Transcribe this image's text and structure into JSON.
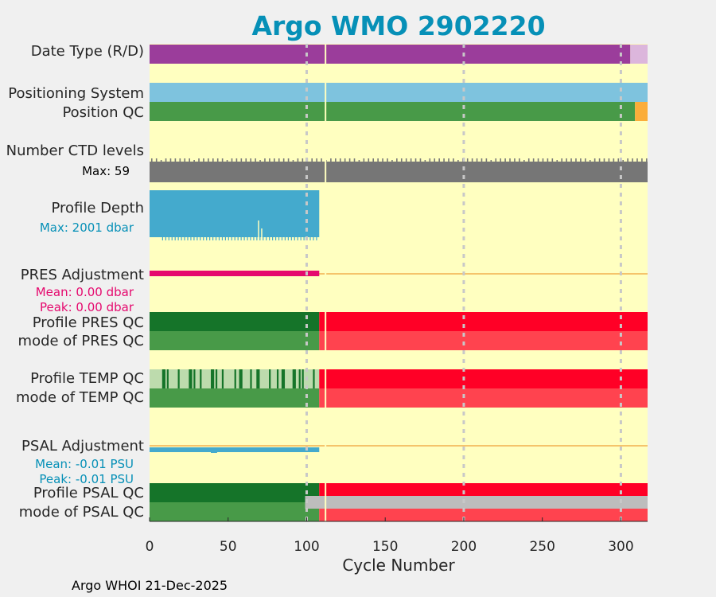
{
  "colors": {
    "title": "#0690b7",
    "background": "#ffffc0",
    "figure": "#f0f0f0",
    "date_real": "#9b3d9b",
    "date_delayed": "#dcb6dc",
    "position_system": "#7ec3de",
    "qc_good": "#489a48",
    "qc_probably_bad": "#fbad3a",
    "ctd": "#767676",
    "depth": "#44aacd",
    "pres_adj": "#e5096e",
    "adj_line": "#f5c46b",
    "qc_dark_green": "#157429",
    "qc_light_green": "#bddbad",
    "qc_red": "#ff0026",
    "qc_mode_red": "#ff434f",
    "psal_adj": "#44aacd",
    "qc_grey": "#bdbdbd",
    "grid": "#c8c8c8",
    "cursor": "#ffffc0"
  },
  "chart_data": {
    "type": "bar",
    "title": "Argo WMO 2902220",
    "xlabel": "Cycle Number",
    "xlim": [
      0,
      317
    ],
    "xticks": [
      0,
      50,
      100,
      150,
      200,
      250,
      300
    ],
    "xtick_labels": [
      "0",
      "50",
      "100",
      "150",
      "200",
      "250",
      "300"
    ],
    "grid_x": [
      100,
      200,
      300
    ],
    "highlight_cycle": 112,
    "rows": [
      {
        "id": "date",
        "label": "Date Type (R/D)",
        "segments": [
          {
            "from": 0,
            "to": 306,
            "color": "date_real"
          },
          {
            "from": 306,
            "to": 317,
            "color": "date_delayed"
          }
        ]
      },
      {
        "id": "possys",
        "label": "Positioning System",
        "segments": [
          {
            "from": 0,
            "to": 317,
            "color": "position_system"
          }
        ]
      },
      {
        "id": "posqc",
        "label": "Position QC",
        "segments": [
          {
            "from": 0,
            "to": 309,
            "color": "qc_good"
          },
          {
            "from": 309,
            "to": 317,
            "color": "qc_probably_bad"
          }
        ]
      },
      {
        "id": "ctd",
        "label": "Number CTD levels",
        "sublabel": "Max: 59",
        "max": 59,
        "range": [
          0,
          317
        ]
      },
      {
        "id": "depth",
        "label": "Profile Depth",
        "sublabel": "Max: 2001 dbar",
        "max": 2001,
        "range": [
          0,
          108
        ]
      },
      {
        "id": "presadj",
        "label": "PRES Adjustment",
        "mean": "Mean: 0.00 dbar",
        "peak": "Peak: 0.00 dbar",
        "range": [
          0,
          108
        ]
      },
      {
        "id": "presqc",
        "label": "Profile PRES QC",
        "segments": [
          {
            "from": 0,
            "to": 108,
            "color": "qc_dark_green"
          },
          {
            "from": 108,
            "to": 317,
            "color": "qc_red"
          }
        ]
      },
      {
        "id": "presmode",
        "label": "mode of PRES QC",
        "segments": [
          {
            "from": 0,
            "to": 108,
            "color": "qc_good"
          },
          {
            "from": 108,
            "to": 317,
            "color": "qc_mode_red"
          }
        ]
      },
      {
        "id": "tempqc",
        "label": "Profile TEMP QC",
        "segments": [
          {
            "from": 0,
            "to": 108,
            "color": "qc_light_green"
          },
          {
            "from": 108,
            "to": 317,
            "color": "qc_red"
          }
        ],
        "dark_cycles": [
          8,
          9,
          11,
          18,
          25,
          26,
          28,
          32,
          39,
          40,
          42,
          46,
          54,
          57,
          58,
          64,
          68,
          69,
          76,
          81,
          84,
          85,
          91,
          92,
          95,
          97,
          104
        ]
      },
      {
        "id": "tempmode",
        "label": "mode of TEMP QC",
        "segments": [
          {
            "from": 0,
            "to": 108,
            "color": "qc_good"
          },
          {
            "from": 108,
            "to": 317,
            "color": "qc_mode_red"
          }
        ]
      },
      {
        "id": "psaladj",
        "label": "PSAL Adjustment",
        "mean": "Mean: -0.01 PSU",
        "peak": "Peak: -0.01 PSU",
        "range": [
          0,
          108
        ]
      },
      {
        "id": "psalqc",
        "label": "Profile PSAL QC",
        "segments": [
          {
            "from": 0,
            "to": 108,
            "color": "qc_dark_green"
          },
          {
            "from": 108,
            "to": 317,
            "color": "qc_red"
          }
        ]
      },
      {
        "id": "psalmode",
        "label": "mode of PSAL QC",
        "segments": [
          {
            "from": 0,
            "to": 108,
            "color": "qc_good"
          },
          {
            "from": 108,
            "to": 317,
            "color": "qc_mode_red"
          }
        ],
        "overlay": {
          "from": 99,
          "to": 317,
          "color": "qc_grey"
        }
      }
    ]
  },
  "footer": "Argo WHOI 21-Dec-2025"
}
